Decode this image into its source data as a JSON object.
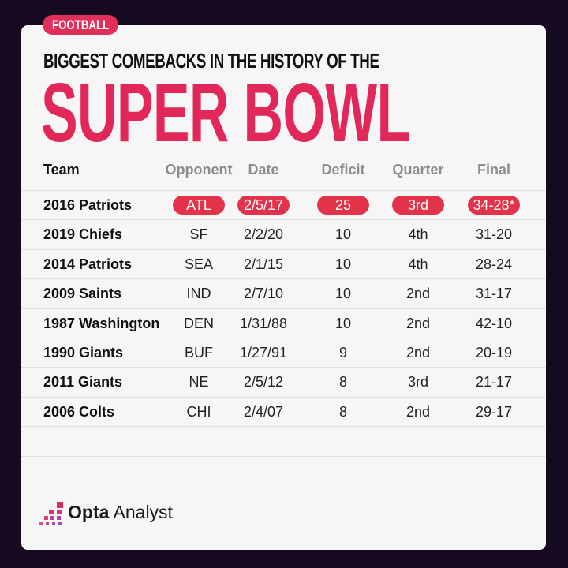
{
  "tag": "FOOTBALL",
  "subtitle": "BIGGEST COMEBACKS IN THE HISTORY OF THE",
  "title": "SUPER BOWL",
  "brand": {
    "bold": "Opta",
    "light": "Analyst"
  },
  "colors": {
    "accent": "#e2285a",
    "highlight": "#e2334a",
    "background": "#150a1f",
    "card": "#f6f6f6"
  },
  "chart_data": {
    "type": "table",
    "columns": [
      "Team",
      "Opponent",
      "Date",
      "Deficit",
      "Quarter",
      "Final"
    ],
    "rows": [
      [
        "2016 Patriots",
        "ATL",
        "2/5/17",
        "25",
        "3rd",
        "34-28*"
      ],
      [
        "2019 Chiefs",
        "SF",
        "2/2/20",
        "10",
        "4th",
        "31-20"
      ],
      [
        "2014 Patriots",
        "SEA",
        "2/1/15",
        "10",
        "4th",
        "28-24"
      ],
      [
        "2009 Saints",
        "IND",
        "2/7/10",
        "10",
        "2nd",
        "31-17"
      ],
      [
        "1987 Washington",
        "DEN",
        "1/31/88",
        "10",
        "2nd",
        "42-10"
      ],
      [
        "1990 Giants",
        "BUF",
        "1/27/91",
        "9",
        "2nd",
        "20-19"
      ],
      [
        "2011 Giants",
        "NE",
        "2/5/12",
        "8",
        "3rd",
        "21-17"
      ],
      [
        "2006 Colts",
        "CHI",
        "2/4/07",
        "8",
        "2nd",
        "29-17"
      ]
    ],
    "highlighted_row": 0
  }
}
